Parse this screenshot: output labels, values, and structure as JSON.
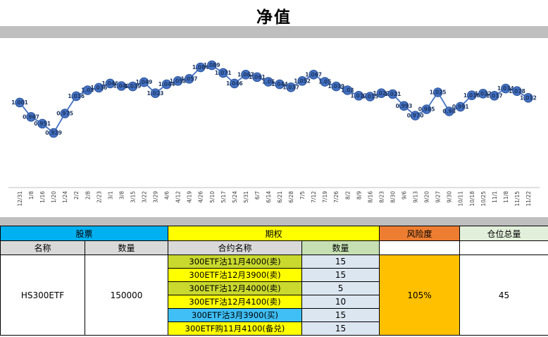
{
  "chart": {
    "title": "净值"
  },
  "chart_data": {
    "type": "line",
    "title": "净值",
    "categories": [
      "12/31",
      "1/8",
      "1/16",
      "1/20",
      "1/24",
      "2/2",
      "2/8",
      "2/23",
      "3/1",
      "3/8",
      "3/15",
      "3/22",
      "3/29",
      "4/6",
      "4/12",
      "4/19",
      "4/26",
      "5/10",
      "5/17",
      "5/24",
      "5/31",
      "6/7",
      "6/14",
      "6/21",
      "6/28",
      "7/5",
      "7/12",
      "7/19",
      "7/26",
      "8/2",
      "8/9",
      "8/16",
      "8/23",
      "8/30",
      "9/6",
      "9/13",
      "9/20",
      "9/27",
      "9/30",
      "10/11",
      "10/18",
      "10/25",
      "11/1",
      "11/8",
      "11/15",
      "11/22"
    ],
    "values": [
      1.001,
      0.967,
      0.951,
      0.929,
      0.975,
      1.016,
      1.03,
      1.036,
      1.046,
      1.04,
      1.039,
      1.049,
      1.023,
      1.044,
      1.052,
      1.057,
      1.084,
      1.089,
      1.071,
      1.046,
      1.067,
      1.061,
      1.05,
      1.044,
      1.037,
      1.052,
      1.067,
      1.05,
      1.039,
      1.03,
      1.017,
      1.015,
      1.023,
      1.021,
      0.993,
      0.97,
      0.985,
      1.025,
      0.98,
      0.991,
      1.018,
      1.022,
      1.017,
      1.034,
      1.028,
      1.012
    ],
    "point_labels": [
      "1.001",
      "0.967",
      "0.951",
      "0.929",
      "0.975",
      "1.016",
      "1.03",
      "1.036",
      "1.046",
      "1.040",
      "1.039",
      "1.049",
      "1.023",
      "1.044",
      "1.052",
      "1.057",
      "1.084",
      "1.089",
      "1.071",
      "1.046",
      "1.067",
      "1.061",
      "1.05",
      "1.044",
      "1.037",
      "1.052",
      "1.067",
      "1.05",
      "1.039",
      "1.03",
      "1.017",
      "1.015",
      "1.023",
      "1.021",
      "0.993",
      "0.970",
      "0.985",
      "1.025",
      "0.98",
      "0.991",
      "1.018",
      "1.022",
      "1.017",
      "1.034",
      "1.028",
      "1.012"
    ],
    "ylim": [
      0.8,
      1.15
    ],
    "xlabel": "",
    "ylabel": "",
    "grid": false,
    "legend": "none",
    "series_color": "#4472C4",
    "marker_stroke": "#2E5597",
    "point_label_color": "#1F3864",
    "axis_color": "#BFBFBF",
    "tick_label_color": "#404040"
  },
  "table": {
    "headers": {
      "stock": "股票",
      "option": "期权",
      "risk": "风险度",
      "position_total": "仓位总量",
      "stock_name": "名称",
      "stock_qty": "数量",
      "contract_name": "合约名称",
      "contract_qty": "数量"
    },
    "stock": {
      "name": "HS300ETF",
      "qty": "150000"
    },
    "options": [
      {
        "name": "300ETF沽11月4000(卖)",
        "qty": "15",
        "bg": "#C9D92E"
      },
      {
        "name": "300ETF沽12月3900(卖)",
        "qty": "15",
        "bg": "#FFFF00"
      },
      {
        "name": "300ETF沽12月4000(卖)",
        "qty": "5",
        "bg": "#C9D92E"
      },
      {
        "name": "300ETF沽12月4100(卖)",
        "qty": "10",
        "bg": "#FFFF00"
      },
      {
        "name": "300ETF沽3月3900(买)",
        "qty": "15",
        "bg": "#3FBFF5"
      },
      {
        "name": "300ETF购11月4100(备兑)",
        "qty": "15",
        "bg": "#FFFF00"
      }
    ],
    "risk": "105%",
    "position_total": "45",
    "colors": {
      "stock_header": "#00B0F0",
      "option_header": "#FFFF00",
      "risk_header": "#ED7D31",
      "total_header": "#E2EFDA",
      "subheader": "#D9D9D9",
      "contract_qty_header": "#C6E0B4",
      "qty_cell": "#DCE6F1",
      "risk_cell": "#FFC000",
      "band": "#BFBFBF"
    }
  }
}
